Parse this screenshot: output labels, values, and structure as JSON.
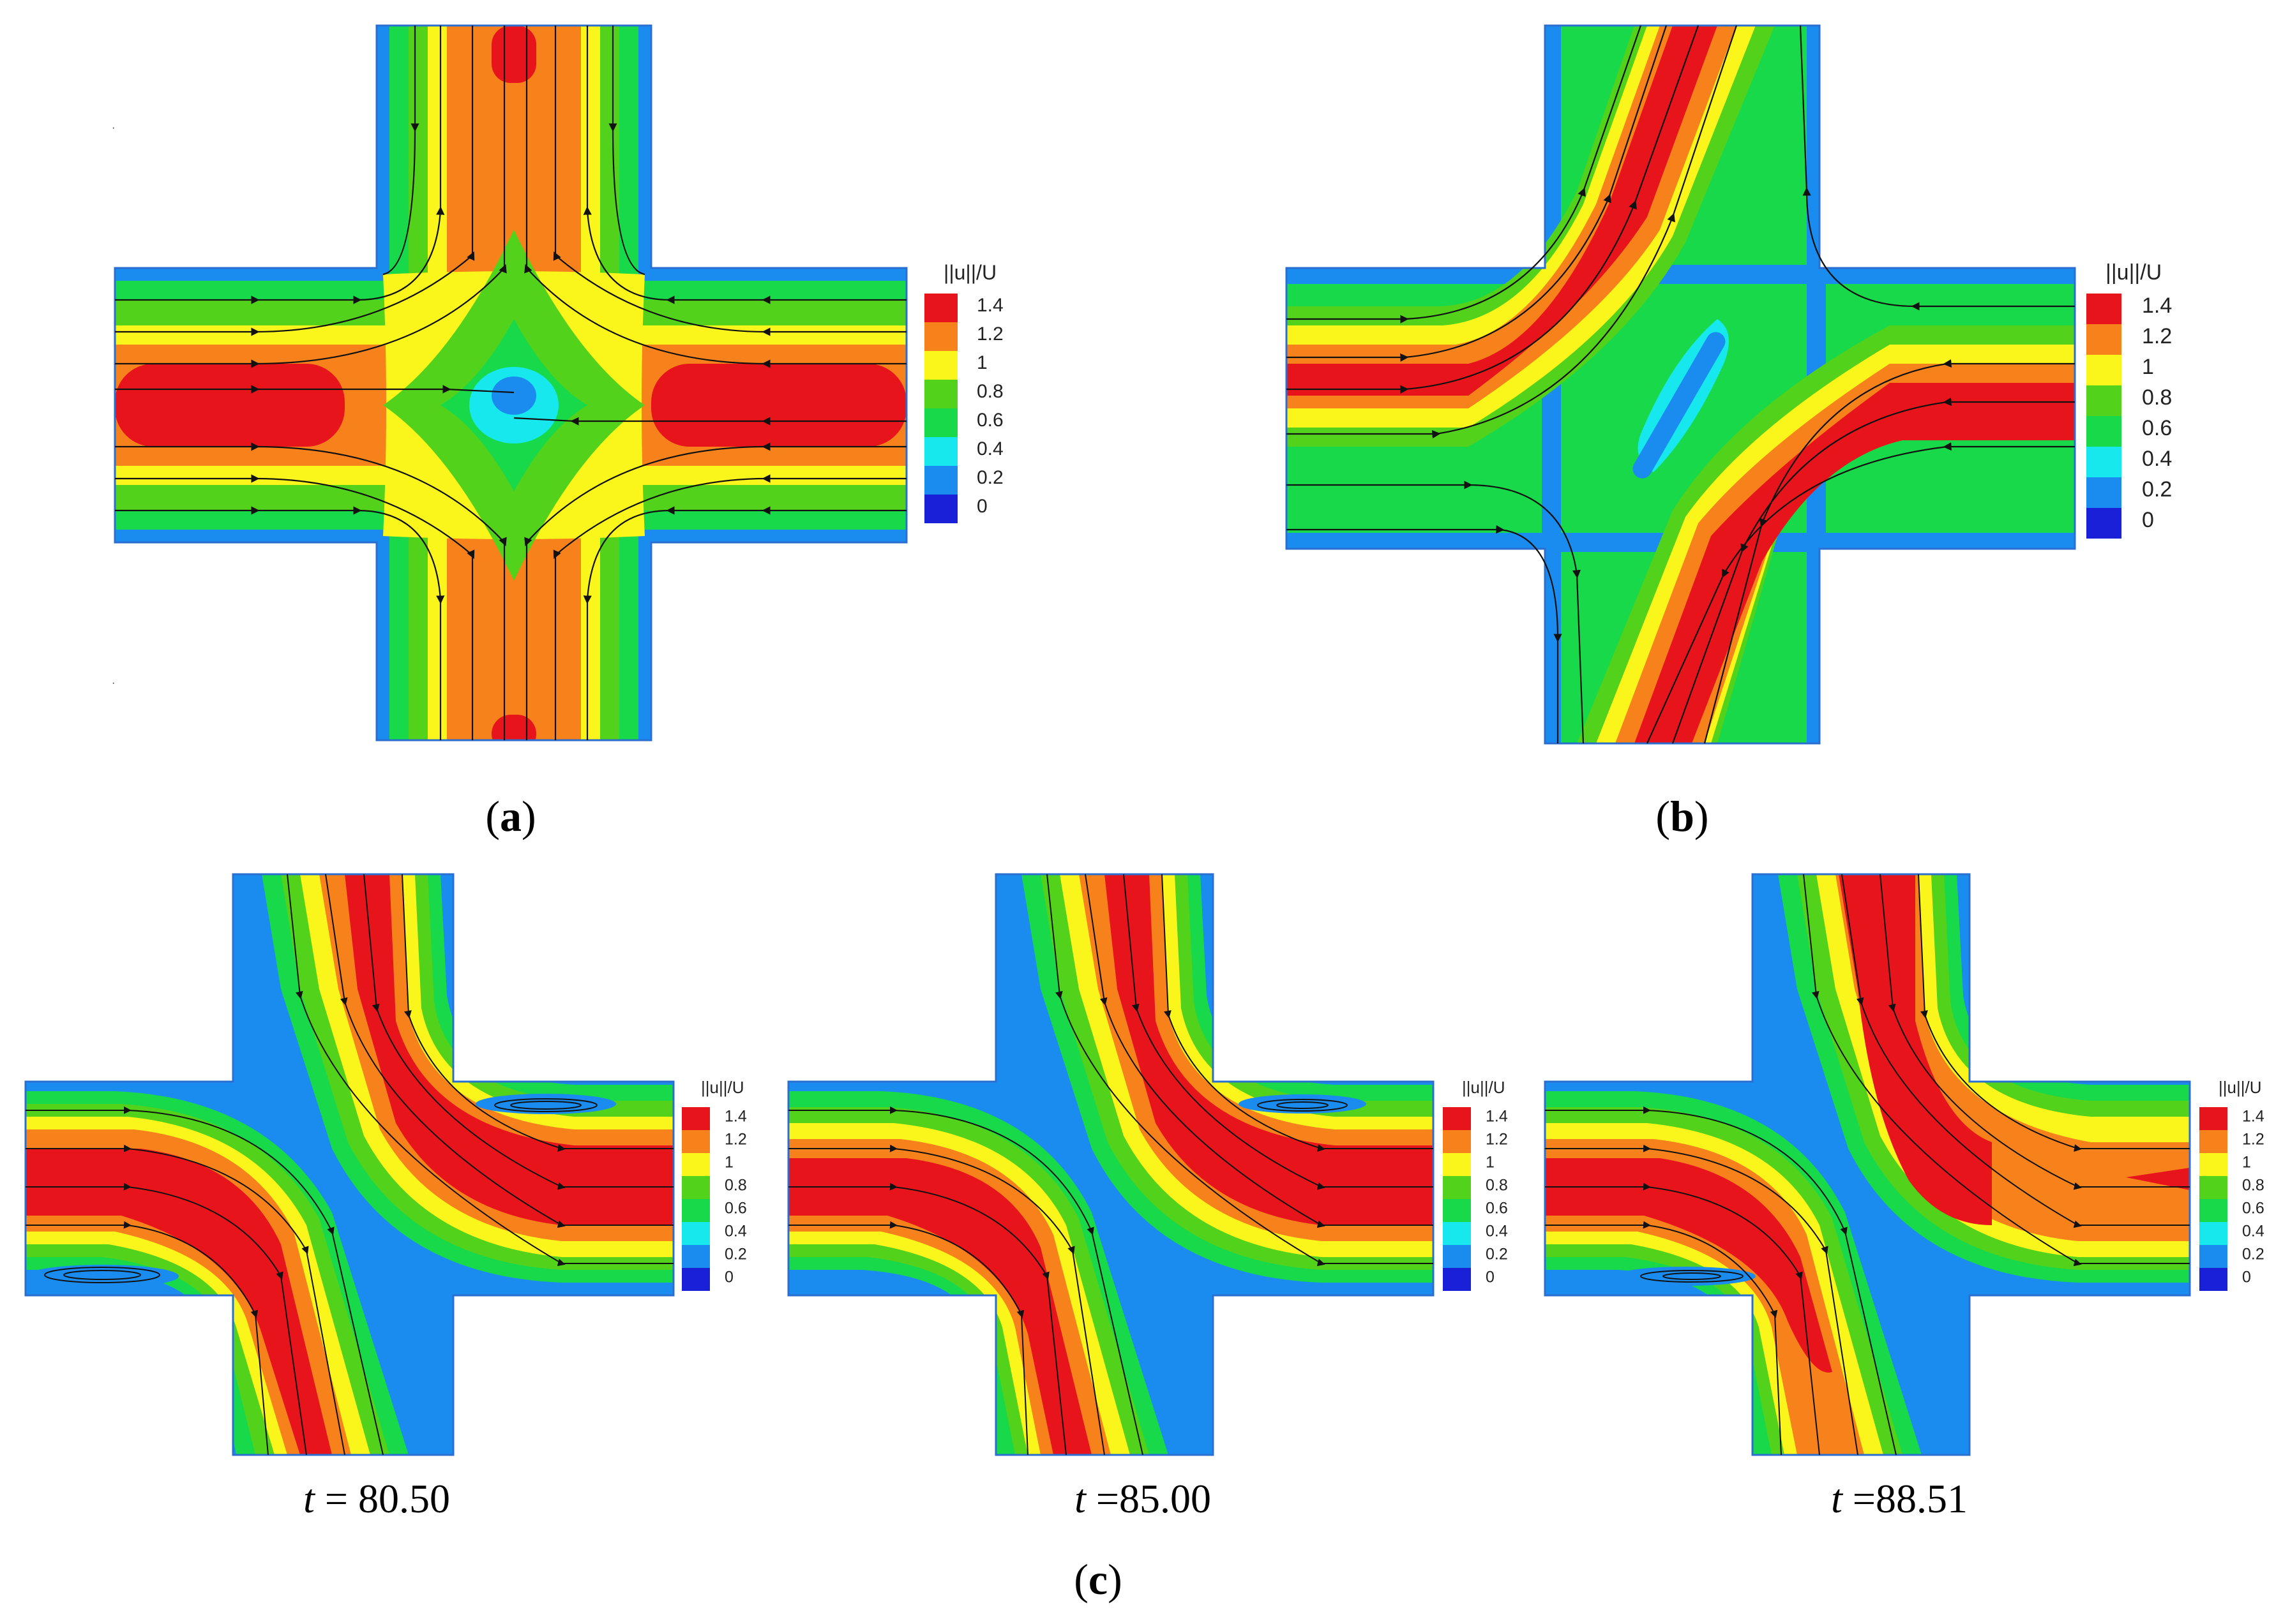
{
  "legend": {
    "title": "||u||/U",
    "ticks": [
      "1.4",
      "1.2",
      "1",
      "0.8",
      "0.6",
      "0.4",
      "0.2",
      "0"
    ],
    "colors": [
      "#e8141c",
      "#f7821c",
      "#faf51a",
      "#52d21b",
      "#18d94a",
      "#17e8ee",
      "#1a8cef",
      "#1a20d8"
    ]
  },
  "field_colors": {
    "wall": "#1a8cef",
    "low": "#18d94a",
    "mid": "#52d21b",
    "high": "#faf51a",
    "higher": "#f7821c",
    "highest": "#e8141c",
    "stagnation": "#17e8ee"
  },
  "panels": [
    {
      "id": "a",
      "label_open": "(",
      "label_letter": "a",
      "label_close": ")"
    },
    {
      "id": "b",
      "label_open": "(",
      "label_letter": "b",
      "label_close": ")"
    },
    {
      "id": "c1",
      "time_var": "t",
      "time_text": " = 80.50"
    },
    {
      "id": "c2",
      "time_var": "t",
      "time_text": " =85.00"
    },
    {
      "id": "c3",
      "time_var": "t",
      "time_text": " =88.51"
    }
  ],
  "label_c": {
    "open": "(",
    "letter": "c",
    "close": ")"
  }
}
